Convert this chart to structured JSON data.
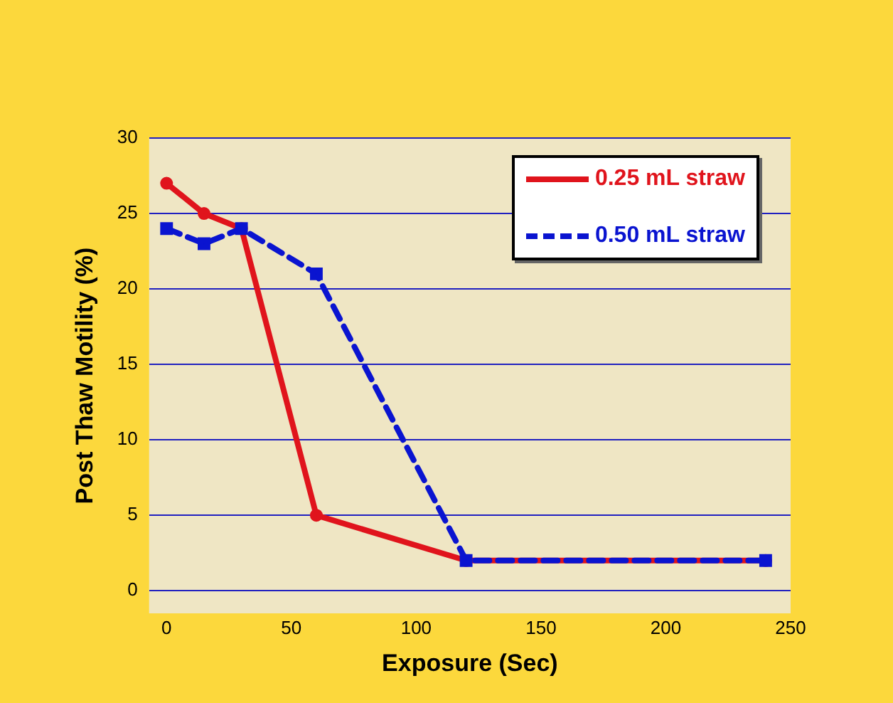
{
  "chart_data": {
    "type": "line",
    "xlabel": "Exposure (Sec)",
    "ylabel": "Post Thaw Motility (%)",
    "xlim": [
      -7,
      250
    ],
    "xticks": [
      0,
      50,
      100,
      150,
      200,
      250
    ],
    "ylim": [
      -1.5,
      30
    ],
    "yticks": [
      0,
      5,
      10,
      15,
      20,
      25,
      30
    ],
    "grid": "y",
    "legend": "top right",
    "series": [
      {
        "name": "0.25 mL straw",
        "color": "#e0141c",
        "x": [
          0,
          15,
          30,
          60,
          120,
          240
        ],
        "values": [
          27,
          25,
          24,
          5,
          2,
          2
        ],
        "marker": "circle",
        "line_style": "solid"
      },
      {
        "name": "0.50 mL straw",
        "color": "#0a14d0",
        "x": [
          0,
          15,
          30,
          60,
          120,
          240
        ],
        "values": [
          24,
          23,
          24,
          21,
          2,
          2
        ],
        "marker": "square",
        "line_style": "dashed"
      }
    ]
  }
}
